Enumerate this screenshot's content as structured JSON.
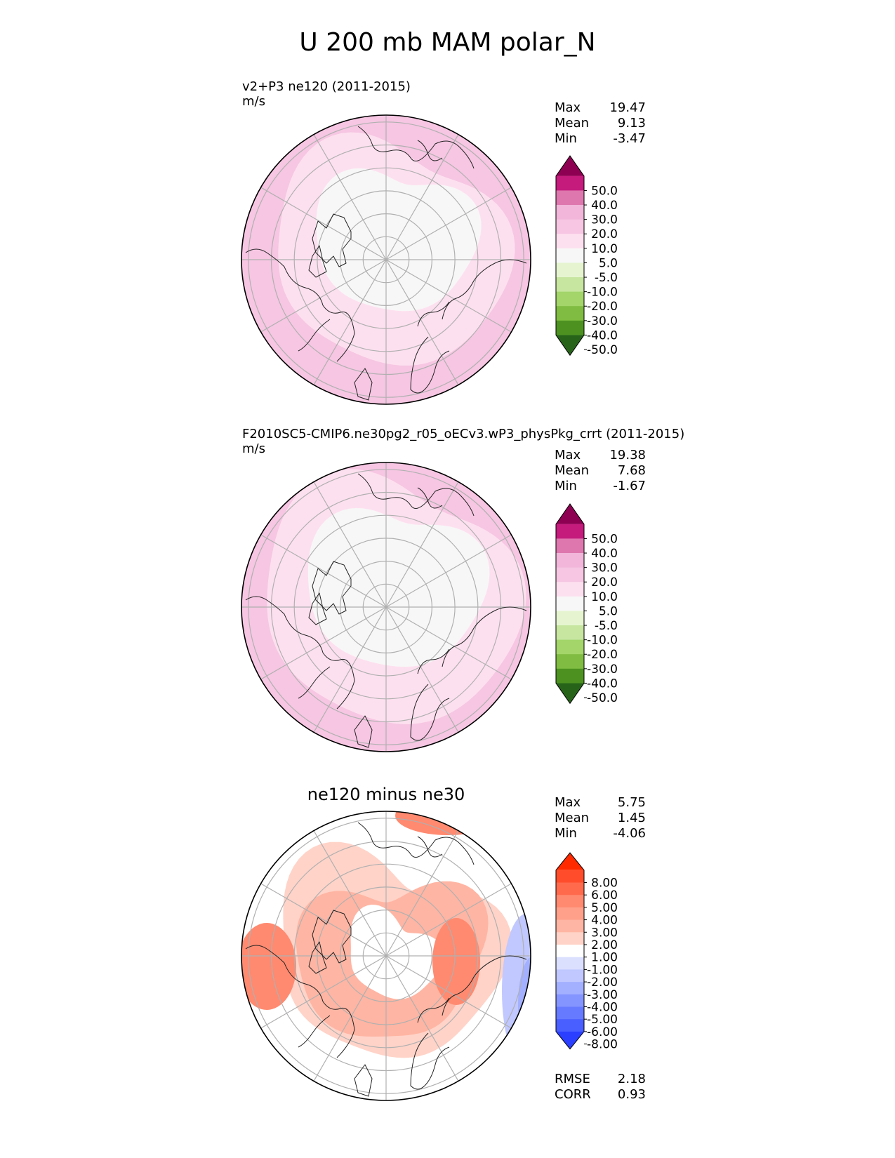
{
  "figure_title": "U 200 mb MAM polar_N",
  "panels": [
    {
      "title_line1": "v2+P3 ne120 (2011-2015)",
      "units": "m/s",
      "stats": [
        {
          "label": "Max",
          "value": "19.47"
        },
        {
          "label": "Mean",
          "value": "9.13"
        },
        {
          "label": "Min",
          "value": "-3.47"
        }
      ]
    },
    {
      "title_line1": "F2010SC5-CMIP6.ne30pg2_r05_oECv3.wP3_physPkg_crrt (2011-2015)",
      "units": "m/s",
      "stats": [
        {
          "label": "Max",
          "value": "19.38"
        },
        {
          "label": "Mean",
          "value": "7.68"
        },
        {
          "label": "Min",
          "value": "-1.67"
        }
      ]
    },
    {
      "center_title": "ne120 minus ne30",
      "stats": [
        {
          "label": "Max",
          "value": "5.75"
        },
        {
          "label": "Mean",
          "value": "1.45"
        },
        {
          "label": "Min",
          "value": "-4.06"
        }
      ],
      "metrics": [
        {
          "label": "RMSE",
          "value": "2.18"
        },
        {
          "label": "CORR",
          "value": "0.93"
        }
      ]
    }
  ],
  "chart_data": [
    {
      "type": "heatmap",
      "projection": "north polar stereographic",
      "title": "v2+P3 ne120 (2011-2015)",
      "units": "m/s",
      "stats": {
        "max": 19.47,
        "mean": 9.13,
        "min": -3.47
      },
      "colorbar": {
        "tick_labels": [
          "50.0",
          "40.0",
          "30.0",
          "20.0",
          "10.0",
          "5.0",
          "-5.0",
          "-10.0",
          "-20.0",
          "-30.0",
          "-40.0",
          "-50.0"
        ],
        "colors": [
          "#8e0152",
          "#c51b7d",
          "#de77ae",
          "#f1b6da",
          "#f6c6e2",
          "#fde0ef",
          "#f7f7f7",
          "#e6f5d0",
          "#c7e6a0",
          "#a3d56a",
          "#7fbc41",
          "#4d9221",
          "#276419"
        ],
        "extend": "both"
      },
      "regions": [
        {
          "name": "outer band",
          "value_range": [
            10,
            20
          ],
          "color": "#f6c6e2"
        },
        {
          "name": "mid ring",
          "value_range": [
            5,
            10
          ],
          "color": "#fde0ef"
        },
        {
          "name": "polar cap",
          "value_range": [
            -5,
            5
          ],
          "color": "#f7f7f7"
        }
      ]
    },
    {
      "type": "heatmap",
      "projection": "north polar stereographic",
      "title": "F2010SC5-CMIP6.ne30pg2_r05_oECv3.wP3_physPkg_crrt (2011-2015)",
      "units": "m/s",
      "stats": {
        "max": 19.38,
        "mean": 7.68,
        "min": -1.67
      },
      "colorbar": {
        "tick_labels": [
          "50.0",
          "40.0",
          "30.0",
          "20.0",
          "10.0",
          "5.0",
          "-5.0",
          "-10.0",
          "-20.0",
          "-30.0",
          "-40.0",
          "-50.0"
        ],
        "colors": [
          "#8e0152",
          "#c51b7d",
          "#de77ae",
          "#f1b6da",
          "#f6c6e2",
          "#fde0ef",
          "#f7f7f7",
          "#e6f5d0",
          "#c7e6a0",
          "#a3d56a",
          "#7fbc41",
          "#4d9221",
          "#276419"
        ],
        "extend": "both"
      },
      "regions": [
        {
          "name": "outer band",
          "value_range": [
            10,
            20
          ],
          "color": "#f6c6e2"
        },
        {
          "name": "mid ring",
          "value_range": [
            5,
            10
          ],
          "color": "#fde0ef"
        },
        {
          "name": "polar cap",
          "value_range": [
            -5,
            5
          ],
          "color": "#f7f7f7"
        }
      ]
    },
    {
      "type": "heatmap",
      "projection": "north polar stereographic",
      "title": "ne120 minus ne30",
      "stats": {
        "max": 5.75,
        "mean": 1.45,
        "min": -4.06
      },
      "metrics": {
        "rmse": 2.18,
        "corr": 0.93
      },
      "colorbar": {
        "tick_labels": [
          "8.00",
          "6.00",
          "5.00",
          "4.00",
          "3.00",
          "2.00",
          "1.00",
          "-1.00",
          "-2.00",
          "-3.00",
          "-4.00",
          "-5.00",
          "-6.00",
          "-8.00"
        ],
        "colors": [
          "#ff2a00",
          "#ff4d2b",
          "#ff6a4d",
          "#ff8a70",
          "#ffa08a",
          "#ffb5a3",
          "#ffd3c8",
          "#ffffff",
          "#dce0ff",
          "#c0c8ff",
          "#a3b0ff",
          "#8595ff",
          "#667aff",
          "#4a5fff",
          "#2a3fff"
        ],
        "extend": "both"
      },
      "regions": [
        {
          "name": "positive bias ring",
          "value_range": [
            1,
            4
          ],
          "color": "#ffb5a3"
        },
        {
          "name": "strong positive patches",
          "value_range": [
            3,
            6
          ],
          "color": "#ff8a70"
        },
        {
          "name": "negative bias (Pacific sector)",
          "value_range": [
            -5,
            -1
          ],
          "color": "#a3b0ff"
        }
      ]
    }
  ]
}
